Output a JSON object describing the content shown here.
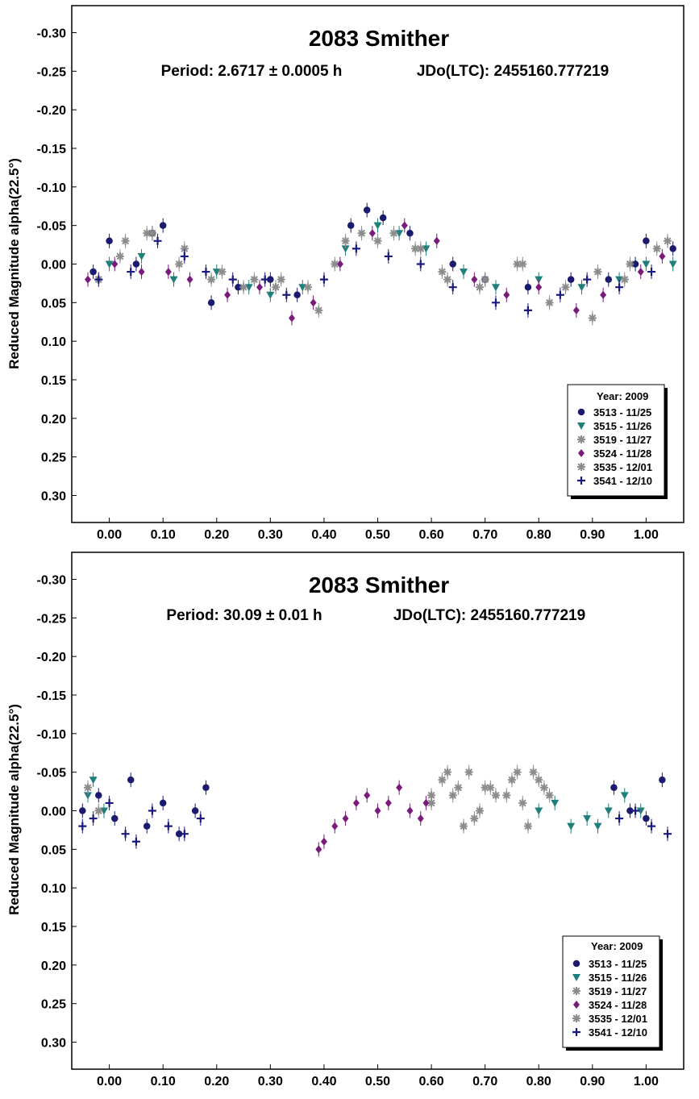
{
  "colors": {
    "3513": "#1a1a6e",
    "3515": "#1f7f7a",
    "3519": "#8c8c8c",
    "3524": "#7a1a7a",
    "3535": "#8c8c8c",
    "3541": "#1a1a7e"
  },
  "chart_data": [
    {
      "type": "scatter",
      "title": "2083 Smither",
      "subtitle_period": "Period: 2.6717 ± 0.0005 h",
      "subtitle_epoch": "JDo(LTC): 2455160.777219",
      "xlabel": "",
      "ylabel": "Reduced Magnitude alpha(22.5°)",
      "xlim": [
        -0.07,
        1.07
      ],
      "ylim": [
        -0.335,
        0.335
      ],
      "y_inverted": true,
      "x_ticks": [
        "0.00",
        "0.10",
        "0.20",
        "0.30",
        "0.40",
        "0.50",
        "0.60",
        "0.70",
        "0.80",
        "0.90",
        "1.00"
      ],
      "y_ticks": [
        "-0.30",
        "-0.25",
        "-0.20",
        "-0.15",
        "-0.10",
        "-0.05",
        "0.00",
        "0.05",
        "0.10",
        "0.15",
        "0.20",
        "0.25",
        "0.30"
      ],
      "legend": {
        "placement": "bottom-right",
        "title": "Year: 2009",
        "entries": [
          {
            "label": "3513 - 11/25",
            "marker": "circle",
            "series": "3513"
          },
          {
            "label": "3515 - 11/26",
            "marker": "triangle",
            "series": "3515"
          },
          {
            "label": "3519 - 11/27",
            "marker": "star",
            "series": "3519"
          },
          {
            "label": "3524 - 11/28",
            "marker": "diamond",
            "series": "3524"
          },
          {
            "label": "3535 - 12/01",
            "marker": "star",
            "series": "3535"
          },
          {
            "label": "3541 - 12/10",
            "marker": "plus",
            "series": "3541"
          }
        ]
      },
      "series": [
        {
          "name": "3513 - 11/25",
          "marker": "circle",
          "color_key": "3513",
          "x": [
            -0.03,
            0.0,
            0.05,
            0.08,
            0.1,
            0.19,
            0.24,
            0.3,
            0.35,
            0.45,
            0.48,
            0.51,
            0.56,
            0.64,
            0.7,
            0.78,
            0.86,
            0.93,
            0.98,
            1.0,
            1.05
          ],
          "y": [
            0.01,
            -0.03,
            0.0,
            -0.04,
            -0.05,
            0.05,
            0.03,
            0.02,
            0.04,
            -0.05,
            -0.07,
            -0.06,
            -0.04,
            0.0,
            0.02,
            0.03,
            0.02,
            0.02,
            0.0,
            -0.03,
            -0.02
          ]
        },
        {
          "name": "3515 - 11/26",
          "marker": "triangle",
          "color_key": "3515",
          "x": [
            0.0,
            0.06,
            0.12,
            0.2,
            0.26,
            0.3,
            0.36,
            0.44,
            0.5,
            0.54,
            0.59,
            0.66,
            0.72,
            0.8,
            0.88,
            0.95,
            1.0,
            1.05
          ],
          "y": [
            0.0,
            -0.01,
            0.02,
            0.01,
            0.03,
            0.04,
            0.03,
            -0.02,
            -0.05,
            -0.04,
            -0.02,
            0.01,
            0.03,
            0.02,
            0.03,
            0.02,
            0.0,
            0.0
          ]
        },
        {
          "name": "3519 - 11/27",
          "marker": "star",
          "color_key": "3519",
          "x": [
            -0.02,
            0.03,
            0.07,
            0.13,
            0.19,
            0.25,
            0.32,
            0.39,
            0.42,
            0.47,
            0.53,
            0.58,
            0.63,
            0.69,
            0.76,
            0.82,
            0.9,
            0.96,
            1.04
          ],
          "y": [
            0.02,
            -0.03,
            -0.04,
            0.0,
            0.02,
            0.03,
            0.02,
            0.06,
            0.0,
            -0.04,
            -0.04,
            -0.02,
            0.02,
            0.03,
            0.0,
            0.05,
            0.07,
            0.02,
            -0.03
          ]
        },
        {
          "name": "3524 - 11/28",
          "marker": "diamond",
          "color_key": "3524",
          "x": [
            -0.04,
            0.01,
            0.06,
            0.11,
            0.15,
            0.22,
            0.28,
            0.34,
            0.38,
            0.43,
            0.49,
            0.55,
            0.61,
            0.68,
            0.74,
            0.8,
            0.87,
            0.92,
            0.99,
            1.03
          ],
          "y": [
            0.02,
            0.0,
            0.01,
            0.01,
            0.02,
            0.04,
            0.03,
            0.07,
            0.05,
            0.0,
            -0.04,
            -0.05,
            -0.03,
            0.02,
            0.04,
            0.03,
            0.06,
            0.04,
            0.01,
            -0.01
          ]
        },
        {
          "name": "3535 - 12/01",
          "marker": "star",
          "color_key": "3535",
          "x": [
            0.02,
            0.08,
            0.14,
            0.21,
            0.27,
            0.31,
            0.37,
            0.44,
            0.5,
            0.57,
            0.62,
            0.7,
            0.77,
            0.85,
            0.91,
            0.97,
            1.02
          ],
          "y": [
            -0.01,
            -0.04,
            -0.02,
            0.01,
            0.02,
            0.03,
            0.03,
            -0.03,
            -0.03,
            -0.02,
            0.01,
            0.02,
            0.0,
            0.03,
            0.01,
            0.0,
            -0.02
          ]
        },
        {
          "name": "3541 - 12/10",
          "marker": "plus",
          "color_key": "3541",
          "x": [
            -0.02,
            0.04,
            0.09,
            0.14,
            0.18,
            0.23,
            0.29,
            0.33,
            0.4,
            0.46,
            0.52,
            0.58,
            0.64,
            0.72,
            0.78,
            0.84,
            0.89,
            0.95,
            1.01
          ],
          "y": [
            0.02,
            0.01,
            -0.03,
            -0.01,
            0.01,
            0.02,
            0.02,
            0.04,
            0.02,
            -0.02,
            -0.01,
            0.0,
            0.03,
            0.05,
            0.06,
            0.04,
            0.02,
            0.03,
            0.01
          ]
        }
      ]
    },
    {
      "type": "scatter",
      "title": "2083 Smither",
      "subtitle_period": "Period: 30.09 ± 0.01 h",
      "subtitle_epoch": "JDo(LTC): 2455160.777219",
      "xlabel": "",
      "ylabel": "Reduced Magnitude alpha(22.5°)",
      "xlim": [
        -0.07,
        1.07
      ],
      "ylim": [
        -0.335,
        0.335
      ],
      "y_inverted": true,
      "x_ticks": [
        "0.00",
        "0.10",
        "0.20",
        "0.30",
        "0.40",
        "0.50",
        "0.60",
        "0.70",
        "0.80",
        "0.90",
        "1.00"
      ],
      "y_ticks": [
        "-0.30",
        "-0.25",
        "-0.20",
        "-0.15",
        "-0.10",
        "-0.05",
        "0.00",
        "0.05",
        "0.10",
        "0.15",
        "0.20",
        "0.25",
        "0.30"
      ],
      "legend": {
        "placement": "bottom-right",
        "title": "Year: 2009",
        "entries": [
          {
            "label": "3513 - 11/25",
            "marker": "circle",
            "series": "3513"
          },
          {
            "label": "3515 - 11/26",
            "marker": "triangle",
            "series": "3515"
          },
          {
            "label": "3519 - 11/27",
            "marker": "star",
            "series": "3519"
          },
          {
            "label": "3524 - 11/28",
            "marker": "diamond",
            "series": "3524"
          },
          {
            "label": "3535 - 12/01",
            "marker": "star",
            "series": "3535"
          },
          {
            "label": "3541 - 12/10",
            "marker": "plus",
            "series": "3541"
          }
        ]
      },
      "series": [
        {
          "name": "3513 - 11/25",
          "marker": "circle",
          "color_key": "3513",
          "x": [
            -0.05,
            -0.02,
            0.01,
            0.04,
            0.07,
            0.1,
            0.13,
            0.16,
            0.18,
            0.94,
            0.97,
            1.0,
            1.03
          ],
          "y": [
            0.0,
            -0.02,
            0.01,
            -0.04,
            0.02,
            -0.01,
            0.03,
            0.0,
            -0.03,
            -0.03,
            0.0,
            0.01,
            -0.04
          ]
        },
        {
          "name": "3515 - 11/26",
          "marker": "triangle",
          "color_key": "3515",
          "x": [
            -0.04,
            -0.03,
            -0.01,
            0.8,
            0.83,
            0.86,
            0.89,
            0.91,
            0.93,
            0.96,
            0.99
          ],
          "y": [
            -0.02,
            -0.04,
            0.0,
            0.0,
            -0.01,
            0.02,
            0.01,
            0.02,
            0.0,
            -0.02,
            0.0
          ]
        },
        {
          "name": "3519 - 11/27",
          "marker": "star",
          "color_key": "3519",
          "x": [
            -0.04,
            -0.02,
            0.6,
            0.62,
            0.64,
            0.66,
            0.67,
            0.69,
            0.71,
            0.74,
            0.76,
            0.78,
            0.8,
            0.82
          ],
          "y": [
            -0.03,
            0.0,
            -0.01,
            -0.04,
            -0.02,
            0.02,
            -0.05,
            0.0,
            -0.03,
            -0.02,
            -0.05,
            0.02,
            -0.04,
            -0.02
          ]
        },
        {
          "name": "3524 - 11/28",
          "marker": "diamond",
          "color_key": "3524",
          "x": [
            0.39,
            0.4,
            0.42,
            0.44,
            0.46,
            0.48,
            0.5,
            0.52,
            0.54,
            0.56,
            0.58,
            0.59
          ],
          "y": [
            0.05,
            0.04,
            0.02,
            0.01,
            -0.01,
            -0.02,
            0.0,
            -0.01,
            -0.03,
            0.0,
            0.01,
            -0.01
          ]
        },
        {
          "name": "3535 - 12/01",
          "marker": "star",
          "color_key": "3535",
          "x": [
            0.6,
            0.63,
            0.65,
            0.68,
            0.7,
            0.72,
            0.75,
            0.77,
            0.79,
            0.81
          ],
          "y": [
            -0.02,
            -0.05,
            -0.03,
            0.01,
            -0.03,
            -0.02,
            -0.04,
            -0.01,
            -0.05,
            -0.03
          ]
        },
        {
          "name": "3541 - 12/10",
          "marker": "plus",
          "color_key": "3541",
          "x": [
            -0.05,
            -0.03,
            0.0,
            0.03,
            0.05,
            0.08,
            0.11,
            0.14,
            0.17,
            0.95,
            0.98,
            1.01,
            1.04
          ],
          "y": [
            0.02,
            0.01,
            -0.01,
            0.03,
            0.04,
            0.0,
            0.02,
            0.03,
            0.01,
            0.01,
            0.0,
            0.02,
            0.03
          ]
        }
      ]
    }
  ]
}
